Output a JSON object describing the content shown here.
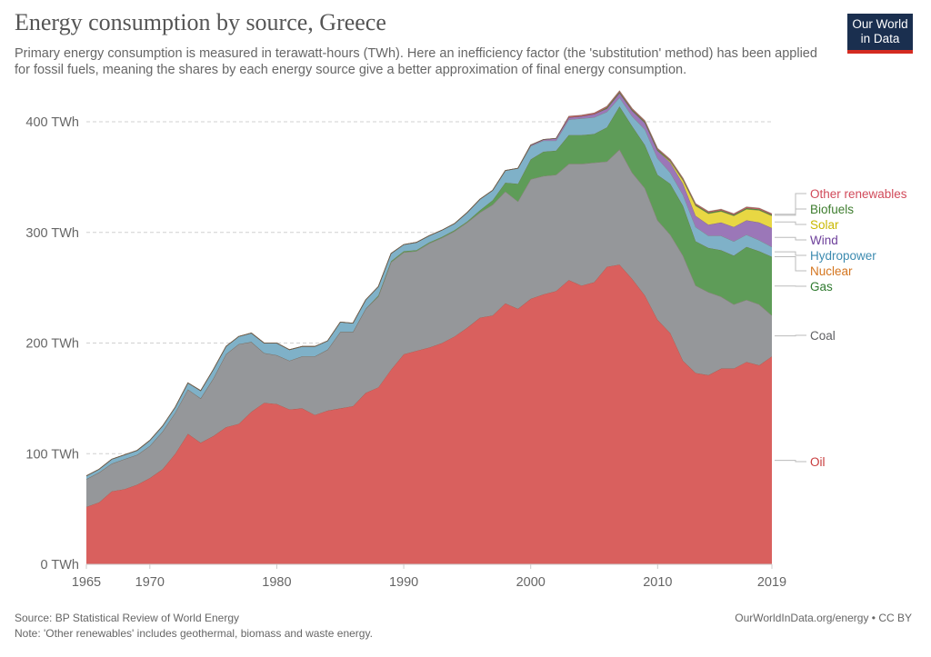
{
  "header": {
    "title": "Energy consumption by source, Greece",
    "subtitle": "Primary energy consumption is measured in terawatt-hours (TWh). Here an inefficiency factor (the 'substitution' method) has been applied for fossil fuels, meaning the shares by each energy source give a better approximation of final energy consumption.",
    "logo_line1": "Our World",
    "logo_line2": "in Data"
  },
  "footer": {
    "source": "Source: BP Statistical Review of World Energy",
    "note": "Note: 'Other renewables' includes geothermal, biomass and waste energy.",
    "link": "OurWorldInData.org/energy • CC BY"
  },
  "colors": {
    "logo_bg": "#1a2f4f",
    "logo_bar": "#d42b21"
  },
  "chart_data": {
    "type": "area",
    "stacked": true,
    "title": "Energy consumption by source, Greece",
    "xlabel": "",
    "ylabel": "",
    "xlim": [
      1965,
      2019
    ],
    "ylim": [
      0,
      430
    ],
    "grid": true,
    "legend_position": "right",
    "y_ticks": [
      {
        "value": 0,
        "label": "0 TWh"
      },
      {
        "value": 100,
        "label": "100 TWh"
      },
      {
        "value": 200,
        "label": "200 TWh"
      },
      {
        "value": 300,
        "label": "300 TWh"
      },
      {
        "value": 400,
        "label": "400 TWh"
      }
    ],
    "x_ticks": [
      {
        "value": 1965,
        "label": "1965"
      },
      {
        "value": 1970,
        "label": "1970"
      },
      {
        "value": 1980,
        "label": "1980"
      },
      {
        "value": 1990,
        "label": "1990"
      },
      {
        "value": 2000,
        "label": "2000"
      },
      {
        "value": 2010,
        "label": "2010"
      },
      {
        "value": 2019,
        "label": "2019"
      }
    ],
    "x": [
      1965,
      1966,
      1967,
      1968,
      1969,
      1970,
      1971,
      1972,
      1973,
      1974,
      1975,
      1976,
      1977,
      1978,
      1979,
      1980,
      1981,
      1982,
      1983,
      1984,
      1985,
      1986,
      1987,
      1988,
      1989,
      1990,
      1991,
      1992,
      1993,
      1994,
      1995,
      1996,
      1997,
      1998,
      1999,
      2000,
      2001,
      2002,
      2003,
      2004,
      2005,
      2006,
      2007,
      2008,
      2009,
      2010,
      2011,
      2012,
      2013,
      2014,
      2015,
      2016,
      2017,
      2018,
      2019
    ],
    "series": [
      {
        "name": "Oil",
        "color": "#d9605e",
        "label_color": "#c83b3c",
        "values": [
          52,
          56,
          66,
          68,
          72,
          78,
          86,
          100,
          118,
          110,
          116,
          124,
          127,
          138,
          146,
          145,
          140,
          141,
          135,
          139,
          141,
          143,
          155,
          160,
          176,
          190,
          193,
          196,
          200,
          206,
          214,
          223,
          225,
          236,
          231,
          240,
          244,
          247,
          257,
          252,
          255,
          269,
          271,
          258,
          243,
          221,
          209,
          184,
          173,
          171,
          177,
          177,
          183,
          180,
          188
        ]
      },
      {
        "name": "Coal",
        "color": "#95979a",
        "label_color": "#5f6063",
        "values": [
          25,
          27,
          25,
          27,
          27,
          29,
          34,
          37,
          40,
          40,
          52,
          66,
          72,
          63,
          45,
          44,
          44,
          47,
          53,
          55,
          69,
          67,
          76,
          82,
          97,
          92,
          90,
          94,
          95,
          95,
          95,
          95,
          100,
          101,
          97,
          108,
          107,
          105,
          105,
          110,
          108,
          95,
          104,
          96,
          97,
          90,
          89,
          95,
          79,
          75,
          65,
          58,
          56,
          55,
          37
        ]
      },
      {
        "name": "Gas",
        "color": "#5e9c58",
        "label_color": "#2f7a2f",
        "values": [
          0,
          0,
          0,
          0,
          0,
          0,
          0,
          0,
          0,
          0,
          0,
          0,
          0,
          0,
          0,
          0,
          0,
          0,
          0,
          0,
          0,
          0,
          0,
          1,
          1,
          1,
          1,
          1,
          1,
          1,
          1,
          2,
          4,
          8,
          16,
          18,
          22,
          22,
          26,
          26,
          26,
          31,
          39,
          42,
          39,
          41,
          46,
          45,
          40,
          40,
          42,
          44,
          48,
          48,
          53
        ]
      },
      {
        "name": "Nuclear",
        "color": "#e07c29",
        "label_color": "#d4751f",
        "values": [
          0,
          0,
          0,
          0,
          0,
          0,
          0,
          0,
          0,
          0,
          0,
          0,
          0,
          0,
          0,
          0,
          0,
          0,
          0,
          0,
          0,
          0,
          0,
          0,
          0,
          0,
          0,
          0,
          0,
          0,
          0,
          0,
          0,
          0,
          0,
          0,
          0,
          0,
          0,
          0,
          0,
          0,
          0,
          0,
          0,
          0,
          0,
          0,
          0,
          0,
          0,
          0,
          0,
          0,
          0
        ]
      },
      {
        "name": "Hydropower",
        "color": "#7fb1c8",
        "label_color": "#3d8bb0",
        "values": [
          3,
          3,
          4,
          4,
          4,
          5,
          5,
          5,
          6,
          7,
          8,
          7,
          7,
          8,
          9,
          11,
          10,
          9,
          9,
          8,
          9,
          8,
          8,
          8,
          7,
          6,
          7,
          6,
          6,
          6,
          8,
          10,
          9,
          11,
          14,
          12,
          10,
          9,
          14,
          15,
          15,
          14,
          8,
          9,
          14,
          15,
          10,
          10,
          13,
          11,
          13,
          13,
          11,
          10,
          9
        ]
      },
      {
        "name": "Wind",
        "color": "#9b77b8",
        "label_color": "#6d3f9a",
        "values": [
          0,
          0,
          0,
          0,
          0,
          0,
          0,
          0,
          0,
          0,
          0,
          0,
          0,
          0,
          0,
          0,
          0,
          0,
          0,
          0,
          0,
          0,
          0,
          0,
          0,
          0,
          0,
          0,
          0,
          0,
          0,
          0,
          0,
          0,
          0,
          1,
          1,
          2,
          2,
          2,
          3,
          3,
          4,
          5,
          6,
          7,
          9,
          10,
          10,
          10,
          12,
          13,
          13,
          16,
          17
        ]
      },
      {
        "name": "Solar",
        "color": "#e8d743",
        "label_color": "#c9b800",
        "values": [
          0,
          0,
          0,
          0,
          0,
          0,
          0,
          0,
          0,
          0,
          0,
          0,
          0,
          0,
          0,
          0,
          0,
          0,
          0,
          0,
          0,
          0,
          0,
          0,
          0,
          0,
          0,
          0,
          0,
          0,
          0,
          0,
          0,
          0,
          0,
          0,
          0,
          0,
          0,
          0,
          0,
          0,
          0,
          0,
          0,
          0,
          1,
          3,
          9,
          10,
          10,
          10,
          10,
          11,
          11
        ]
      },
      {
        "name": "Biofuels",
        "color": "#4f8a3e",
        "label_color": "#3e7d2e",
        "values": [
          0,
          0,
          0,
          0,
          0,
          0,
          0,
          0,
          0,
          0,
          0,
          0,
          0,
          0,
          0,
          0,
          0,
          0,
          0,
          0,
          0,
          0,
          0,
          0,
          0,
          0,
          0,
          0,
          0,
          0,
          0,
          0,
          0,
          0,
          0,
          0,
          0,
          0,
          0,
          0,
          0,
          1,
          1,
          1,
          1,
          1,
          1,
          1,
          1,
          1,
          1,
          1,
          1,
          1,
          1
        ]
      },
      {
        "name": "Other renewables",
        "color": "#c55a63",
        "label_color": "#d14a5a",
        "values": [
          0,
          0,
          0,
          0,
          0,
          0,
          0,
          0,
          0,
          0,
          0,
          0,
          0,
          0,
          0,
          0,
          0,
          0,
          0,
          0,
          0,
          0,
          0,
          0,
          0,
          0,
          0,
          0,
          0,
          0,
          0,
          0,
          0,
          0,
          0,
          0,
          0,
          0,
          1,
          1,
          1,
          1,
          1,
          1,
          1,
          1,
          1,
          1,
          1,
          1,
          1,
          1,
          1,
          1,
          1
        ]
      }
    ],
    "legend": [
      {
        "label": "Other renewables",
        "color": "#d14a5a"
      },
      {
        "label": "Biofuels",
        "color": "#3e7d2e"
      },
      {
        "label": "Solar",
        "color": "#c9b800"
      },
      {
        "label": "Wind",
        "color": "#6d3f9a"
      },
      {
        "label": "Hydropower",
        "color": "#3d8bb0"
      },
      {
        "label": "Nuclear",
        "color": "#d4751f"
      },
      {
        "label": "Gas",
        "color": "#2f7a2f"
      },
      {
        "label": "Coal",
        "color": "#5f6063"
      },
      {
        "label": "Oil",
        "color": "#c83b3c"
      }
    ]
  }
}
